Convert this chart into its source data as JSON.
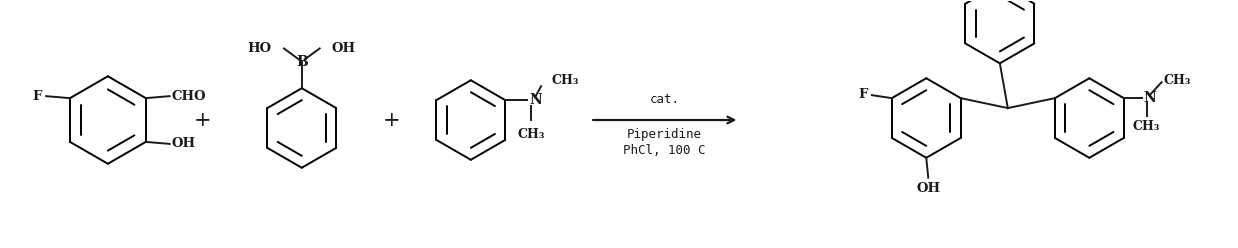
{
  "bg_color": "#ffffff",
  "text_color": "#1a1a1a",
  "arrow_label_top": "cat.",
  "arrow_label_mid": "Piperidine",
  "arrow_label_bot": "PhCl, 100 C",
  "figsize": [
    12.38,
    2.48
  ],
  "dpi": 100,
  "lw": 1.4
}
